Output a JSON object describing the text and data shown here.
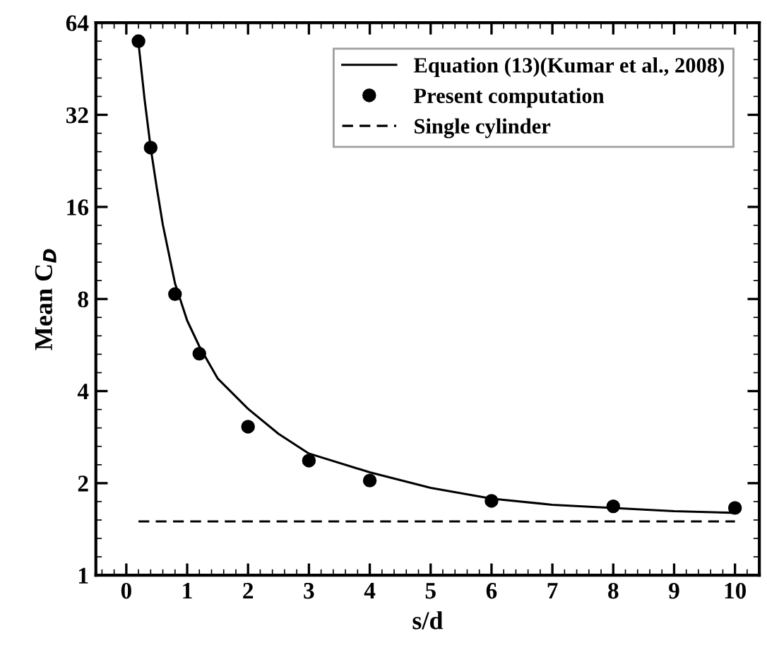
{
  "chart_data": {
    "type": "scatter",
    "xlabel": "s/d",
    "ylabel": "Mean C$_{D}$",
    "log": "y",
    "xlim": [
      -0.5,
      10.4
    ],
    "ylim": [
      1,
      64
    ],
    "xticks": [
      0,
      1,
      2,
      3,
      4,
      5,
      6,
      7,
      8,
      9,
      10
    ],
    "yticks": [
      1,
      2,
      4,
      8,
      16,
      32,
      64
    ],
    "grid": false,
    "legend": "top right",
    "series": [
      {
        "name": "Equation (13)(Kumar et al., 2008)",
        "type": "line",
        "line_style": "solid",
        "marker": "none",
        "color": "#000000",
        "x": [
          0.2,
          0.3,
          0.4,
          0.5,
          0.6,
          0.8,
          1,
          1.2,
          1.5,
          2,
          2.5,
          3,
          4,
          5,
          6,
          7,
          8,
          9,
          10
        ],
        "values": [
          55,
          36,
          25,
          18.5,
          14,
          9,
          6.8,
          5.6,
          4.4,
          3.5,
          2.9,
          2.5,
          2.17,
          1.93,
          1.78,
          1.7,
          1.66,
          1.62,
          1.6
        ]
      },
      {
        "name": "Present computation",
        "marker": "circle",
        "color": "#000000",
        "x": [
          0.2,
          0.4,
          0.8,
          1.2,
          2,
          3,
          4,
          6,
          8,
          10
        ],
        "values": [
          55.7,
          25,
          8.3,
          5.3,
          3.06,
          2.37,
          2.04,
          1.75,
          1.68,
          1.66
        ]
      },
      {
        "name": "Single cylinder",
        "type": "line",
        "line_style": "dashed",
        "marker": "none",
        "color": "#000000",
        "x": [
          0.2,
          10
        ],
        "values": [
          1.5,
          1.5
        ]
      }
    ]
  }
}
